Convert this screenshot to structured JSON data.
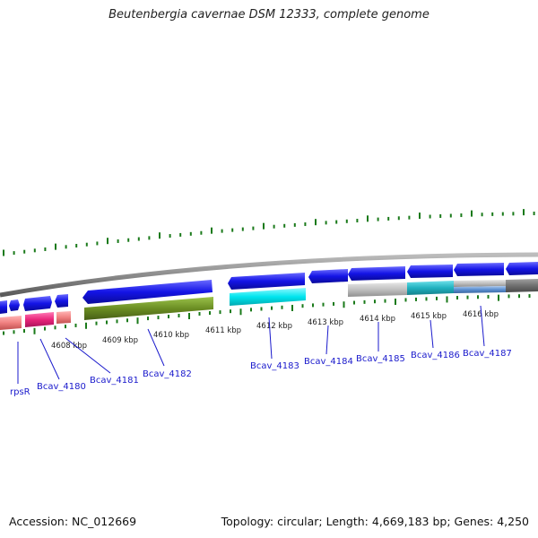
{
  "title": "Beutenbergia cavernae DSM 12333, complete genome",
  "footer": {
    "accession": "Accession: NC_012669",
    "topology": "Topology: circular; Length: 4,669,183 bp; Genes: 4,250"
  },
  "kbp_ticks": [
    "4608 kbp",
    "4609 kbp",
    "4610 kbp",
    "4611 kbp",
    "4612 kbp",
    "4613 kbp",
    "4614 kbp",
    "4615 kbp",
    "4616 kbp"
  ],
  "gene_labels": [
    "rpsR",
    "Bcav_4180",
    "Bcav_4181",
    "Bcav_4182",
    "Bcav_4183",
    "Bcav_4184",
    "Bcav_4185",
    "Bcav_4186",
    "Bcav_4187"
  ],
  "colors": {
    "backbone": "#8c8c8c",
    "forward_gene": "#1414e6",
    "tick": "#1a7a1a",
    "label": "#1a1acc",
    "olive": "#6b8e23",
    "cyan": "#00e5ee",
    "pink": "#e8257a",
    "salmon": "#f08080",
    "light_gray": "#c0c0c0",
    "teal": "#20b2c0",
    "steel_blue": "#5b8fd0",
    "dark_gray": "#707070"
  }
}
